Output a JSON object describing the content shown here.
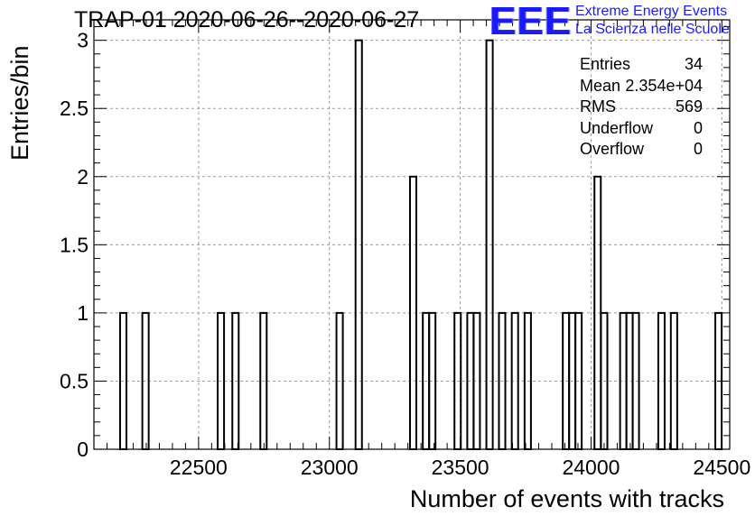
{
  "title": "TRAP-01 2020-06-26--2020-06-27",
  "logo": {
    "mark": "EEE",
    "line1": "Extreme Energy Events",
    "line2": "La Scienza nelle Scuole",
    "color": "#1a1aff"
  },
  "stats": [
    {
      "label": "Entries",
      "value": "34"
    },
    {
      "label": "Mean",
      "value": "2.354e+04"
    },
    {
      "label": "RMS",
      "value": "569"
    },
    {
      "label": "Underflow",
      "value": "0"
    },
    {
      "label": "Overflow",
      "value": "0"
    }
  ],
  "chart_data": {
    "type": "histogram",
    "title": "TRAP-01 2020-06-26--2020-06-27",
    "xlabel": "Number of events with tracks",
    "ylabel": "Entries/bin",
    "xlim": [
      22100,
      24530
    ],
    "ylim": [
      0,
      3.15
    ],
    "xticks": [
      22500,
      23000,
      23500,
      24000,
      24500
    ],
    "yticks": [
      0,
      0.5,
      1,
      1.5,
      2,
      2.5,
      3
    ],
    "ytick_labels": [
      "0",
      "0.5",
      "1",
      "1.5",
      "2",
      "2.5",
      "3"
    ],
    "grid": true,
    "bin_width": 24.3,
    "bins": [
      {
        "x": 22200,
        "count": 1
      },
      {
        "x": 22285,
        "count": 1
      },
      {
        "x": 22573,
        "count": 1
      },
      {
        "x": 22629,
        "count": 1
      },
      {
        "x": 22736,
        "count": 1
      },
      {
        "x": 23027,
        "count": 1
      },
      {
        "x": 23100,
        "count": 3
      },
      {
        "x": 23308,
        "count": 2
      },
      {
        "x": 23357,
        "count": 1
      },
      {
        "x": 23381,
        "count": 1
      },
      {
        "x": 23478,
        "count": 1
      },
      {
        "x": 23527,
        "count": 1
      },
      {
        "x": 23551,
        "count": 1
      },
      {
        "x": 23600,
        "count": 3
      },
      {
        "x": 23648,
        "count": 1
      },
      {
        "x": 23697,
        "count": 1
      },
      {
        "x": 23746,
        "count": 1
      },
      {
        "x": 23892,
        "count": 1
      },
      {
        "x": 23916,
        "count": 1
      },
      {
        "x": 23940,
        "count": 1
      },
      {
        "x": 24013,
        "count": 2
      },
      {
        "x": 24038,
        "count": 1
      },
      {
        "x": 24111,
        "count": 1
      },
      {
        "x": 24135,
        "count": 1
      },
      {
        "x": 24159,
        "count": 1
      },
      {
        "x": 24257,
        "count": 1
      },
      {
        "x": 24305,
        "count": 1
      },
      {
        "x": 24475,
        "count": 1
      }
    ],
    "color": "#000000"
  }
}
